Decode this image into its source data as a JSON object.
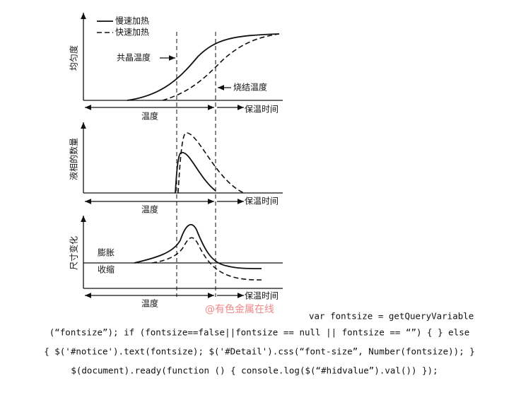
{
  "panels": [
    {
      "y_label": "均匀度",
      "x_label": "温度",
      "time_label": "保温时间",
      "legend": [
        "慢速加热",
        "快速加热"
      ],
      "annotations": [
        "共晶温度",
        "烧结温度"
      ]
    },
    {
      "y_label": "液相的数量",
      "x_label": "温度",
      "time_label": "保温时间"
    },
    {
      "y_label": "尺寸变化",
      "x_label": "温度",
      "time_label": "保温时间",
      "annotations": [
        "膨胀",
        "收缩"
      ]
    }
  ],
  "watermark": "@有色金属在线",
  "code_lines": [
    "var fontsize = getQueryVariable",
    "(“fontsize”); if (fontsize==false||fontsize == null || fontsize == “”) { } else",
    "{ $('#notice').text(fontsize); $('#Detail').css(“font-size”, Number(fontsize)); }",
    "$(document).ready(function () { console.log($(“#hidvalue”).val()) });"
  ]
}
